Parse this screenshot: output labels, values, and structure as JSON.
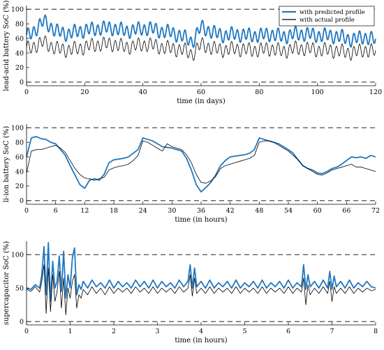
{
  "colors": {
    "predicted": "#1f77c0",
    "actual": "#000000"
  },
  "chart_data": [
    {
      "type": "line",
      "xlabel": "time (in days)",
      "ylabel": "lead-acid battery SoC (%)",
      "xlim": [
        0,
        120
      ],
      "ylim": [
        -5,
        105
      ],
      "xticks": [
        0,
        20,
        40,
        60,
        80,
        100,
        120
      ],
      "yticks": [
        0,
        20,
        40,
        60,
        80,
        100
      ],
      "reference_lines": [
        0,
        100
      ],
      "legend": {
        "position": "top-right",
        "entries": [
          "with predicted profile",
          "with actual profile"
        ]
      },
      "series": [
        {
          "name": "with predicted profile",
          "style": "oscillating",
          "amplitude": 8,
          "period": 2,
          "x": [
            0,
            3,
            6,
            10,
            14,
            18,
            22,
            26,
            30,
            34,
            38,
            42,
            46,
            50,
            54,
            57,
            60,
            64,
            68,
            72,
            76,
            80,
            84,
            88,
            92,
            96,
            100,
            104,
            108,
            112,
            116,
            120
          ],
          "y": [
            62,
            72,
            84,
            70,
            66,
            70,
            72,
            74,
            74,
            70,
            72,
            74,
            70,
            68,
            62,
            55,
            76,
            68,
            64,
            66,
            64,
            64,
            66,
            62,
            66,
            66,
            64,
            64,
            62,
            58,
            62,
            58
          ]
        },
        {
          "name": "with actual profile",
          "style": "oscillating",
          "amplitude": 8,
          "period": 2,
          "x": [
            0,
            3,
            6,
            10,
            14,
            18,
            22,
            26,
            30,
            34,
            38,
            42,
            46,
            50,
            54,
            57,
            60,
            64,
            68,
            72,
            76,
            80,
            84,
            88,
            92,
            96,
            100,
            104,
            108,
            112,
            116,
            120
          ],
          "y": [
            45,
            50,
            55,
            46,
            44,
            46,
            50,
            52,
            52,
            48,
            50,
            52,
            48,
            46,
            44,
            38,
            52,
            46,
            44,
            46,
            44,
            44,
            46,
            42,
            46,
            46,
            44,
            44,
            42,
            40,
            44,
            42
          ]
        }
      ]
    },
    {
      "type": "line",
      "xlabel": "time (in hours)",
      "ylabel": "li-ion battery SoC (%)",
      "xlim": [
        0,
        72
      ],
      "ylim": [
        -5,
        105
      ],
      "xticks": [
        0,
        6,
        12,
        18,
        24,
        30,
        36,
        42,
        48,
        54,
        60,
        66,
        72
      ],
      "yticks": [
        0,
        20,
        40,
        60,
        80,
        100
      ],
      "reference_lines": [
        0,
        100
      ],
      "series": [
        {
          "name": "with predicted profile",
          "x": [
            0,
            1,
            2,
            3,
            4,
            5,
            6,
            7,
            8,
            9,
            10,
            11,
            12,
            13,
            14,
            15,
            16,
            17,
            18,
            19,
            20,
            21,
            22,
            23,
            24,
            25,
            26,
            27,
            28,
            29,
            30,
            31,
            32,
            33,
            34,
            35,
            36,
            37,
            38,
            39,
            40,
            41,
            42,
            43,
            44,
            45,
            46,
            47,
            48,
            49,
            50,
            51,
            52,
            53,
            54,
            55,
            56,
            57,
            58,
            59,
            60,
            61,
            62,
            63,
            64,
            65,
            66,
            67,
            68,
            69,
            70,
            71,
            72
          ],
          "y": [
            60,
            86,
            88,
            85,
            84,
            80,
            78,
            70,
            62,
            48,
            35,
            22,
            17,
            28,
            30,
            28,
            36,
            52,
            56,
            57,
            58,
            60,
            65,
            70,
            86,
            84,
            82,
            78,
            74,
            73,
            72,
            70,
            68,
            58,
            42,
            22,
            12,
            18,
            25,
            35,
            48,
            55,
            60,
            61,
            62,
            63,
            65,
            70,
            86,
            84,
            82,
            80,
            78,
            74,
            70,
            65,
            56,
            48,
            44,
            42,
            38,
            37,
            40,
            44,
            46,
            50,
            55,
            60,
            59,
            60,
            58,
            62,
            60
          ]
        },
        {
          "name": "with actual profile",
          "x": [
            0,
            1,
            2,
            3,
            4,
            5,
            6,
            7,
            8,
            9,
            10,
            11,
            12,
            13,
            14,
            15,
            16,
            17,
            18,
            19,
            20,
            21,
            22,
            23,
            24,
            25,
            26,
            27,
            28,
            29,
            30,
            31,
            32,
            33,
            34,
            35,
            36,
            37,
            38,
            39,
            40,
            41,
            42,
            43,
            44,
            45,
            46,
            47,
            48,
            49,
            50,
            51,
            52,
            53,
            54,
            55,
            56,
            57,
            58,
            59,
            60,
            61,
            62,
            63,
            64,
            65,
            66,
            67,
            68,
            69,
            70,
            71,
            72
          ],
          "y": [
            38,
            68,
            70,
            70,
            72,
            74,
            76,
            72,
            66,
            55,
            44,
            36,
            31,
            30,
            28,
            30,
            32,
            42,
            45,
            47,
            48,
            50,
            55,
            62,
            82,
            80,
            76,
            72,
            68,
            78,
            74,
            72,
            70,
            63,
            52,
            36,
            25,
            24,
            27,
            33,
            44,
            48,
            50,
            52,
            54,
            56,
            58,
            62,
            80,
            82,
            82,
            80,
            76,
            72,
            68,
            62,
            56,
            48,
            44,
            40,
            36,
            35,
            38,
            42,
            44,
            46,
            48,
            50,
            46,
            46,
            44,
            42,
            40
          ]
        }
      ]
    },
    {
      "type": "line",
      "xlabel": "time (in hours)",
      "ylabel": "supercapacitor SoC (%)",
      "xlim": [
        0,
        8
      ],
      "ylim": [
        -5,
        120
      ],
      "xticks": [
        0,
        1,
        2,
        3,
        4,
        5,
        6,
        7,
        8
      ],
      "yticks": [
        0,
        50,
        100
      ],
      "reference_lines": [
        0,
        100
      ],
      "series": [
        {
          "name": "with predicted profile",
          "x": [
            0,
            0.1,
            0.2,
            0.3,
            0.35,
            0.4,
            0.45,
            0.5,
            0.55,
            0.6,
            0.65,
            0.7,
            0.75,
            0.8,
            0.85,
            0.9,
            0.95,
            1.0,
            1.05,
            1.1,
            1.15,
            1.2,
            1.25,
            1.3,
            1.4,
            1.5,
            1.6,
            1.7,
            1.8,
            1.9,
            2.0,
            2.1,
            2.2,
            2.3,
            2.4,
            2.5,
            2.6,
            2.7,
            2.8,
            2.9,
            3.0,
            3.1,
            3.2,
            3.3,
            3.4,
            3.5,
            3.6,
            3.7,
            3.75,
            3.8,
            3.85,
            3.9,
            4.0,
            4.1,
            4.2,
            4.3,
            4.4,
            4.5,
            4.6,
            4.7,
            4.8,
            4.9,
            5.0,
            5.1,
            5.2,
            5.3,
            5.4,
            5.5,
            5.6,
            5.7,
            5.8,
            5.9,
            6.0,
            6.1,
            6.2,
            6.3,
            6.35,
            6.4,
            6.45,
            6.5,
            6.6,
            6.7,
            6.8,
            6.9,
            6.95,
            7.0,
            7.05,
            7.1,
            7.2,
            7.3,
            7.4,
            7.5,
            7.6,
            7.7,
            7.8,
            7.9,
            8.0
          ],
          "y": [
            50,
            48,
            55,
            50,
            70,
            112,
            40,
            118,
            30,
            90,
            50,
            60,
            98,
            45,
            105,
            35,
            70,
            50,
            95,
            110,
            40,
            55,
            48,
            60,
            50,
            62,
            52,
            58,
            50,
            62,
            50,
            60,
            52,
            58,
            50,
            62,
            52,
            60,
            50,
            62,
            50,
            60,
            52,
            58,
            50,
            62,
            52,
            60,
            85,
            50,
            80,
            52,
            60,
            50,
            62,
            50,
            58,
            52,
            60,
            50,
            62,
            50,
            58,
            52,
            60,
            50,
            62,
            50,
            58,
            52,
            60,
            50,
            62,
            50,
            58,
            52,
            85,
            48,
            70,
            52,
            60,
            50,
            62,
            50,
            75,
            48,
            68,
            52,
            60,
            50,
            62,
            50,
            58,
            52,
            60,
            52,
            50
          ]
        },
        {
          "name": "with actual profile",
          "x": [
            0,
            0.1,
            0.2,
            0.3,
            0.35,
            0.4,
            0.45,
            0.5,
            0.55,
            0.6,
            0.65,
            0.7,
            0.75,
            0.8,
            0.85,
            0.9,
            0.95,
            1.0,
            1.05,
            1.1,
            1.15,
            1.2,
            1.25,
            1.3,
            1.4,
            1.5,
            1.6,
            1.7,
            1.8,
            1.9,
            2.0,
            2.1,
            2.2,
            2.3,
            2.4,
            2.5,
            2.6,
            2.7,
            2.8,
            2.9,
            3.0,
            3.1,
            3.2,
            3.3,
            3.4,
            3.5,
            3.6,
            3.7,
            3.75,
            3.8,
            3.85,
            3.9,
            4.0,
            4.1,
            4.2,
            4.3,
            4.4,
            4.5,
            4.6,
            4.7,
            4.8,
            4.9,
            5.0,
            5.1,
            5.2,
            5.3,
            5.4,
            5.5,
            5.6,
            5.7,
            5.8,
            5.9,
            6.0,
            6.1,
            6.2,
            6.3,
            6.35,
            6.4,
            6.45,
            6.5,
            6.6,
            6.7,
            6.8,
            6.9,
            6.95,
            7.0,
            7.05,
            7.1,
            7.2,
            7.3,
            7.4,
            7.5,
            7.6,
            7.7,
            7.8,
            7.9,
            8.0
          ],
          "y": [
            48,
            45,
            52,
            44,
            60,
            85,
            12,
            80,
            15,
            70,
            30,
            45,
            75,
            20,
            65,
            10,
            50,
            35,
            60,
            70,
            20,
            40,
            35,
            48,
            40,
            52,
            42,
            50,
            40,
            52,
            42,
            50,
            44,
            50,
            42,
            52,
            44,
            50,
            42,
            52,
            42,
            50,
            44,
            50,
            42,
            52,
            44,
            50,
            70,
            38,
            65,
            42,
            50,
            42,
            52,
            42,
            50,
            44,
            50,
            42,
            52,
            42,
            50,
            44,
            50,
            42,
            52,
            42,
            50,
            44,
            50,
            42,
            52,
            42,
            50,
            44,
            65,
            25,
            55,
            40,
            50,
            42,
            52,
            42,
            60,
            30,
            52,
            42,
            50,
            42,
            52,
            42,
            50,
            44,
            50,
            46,
            48
          ]
        }
      ]
    }
  ]
}
